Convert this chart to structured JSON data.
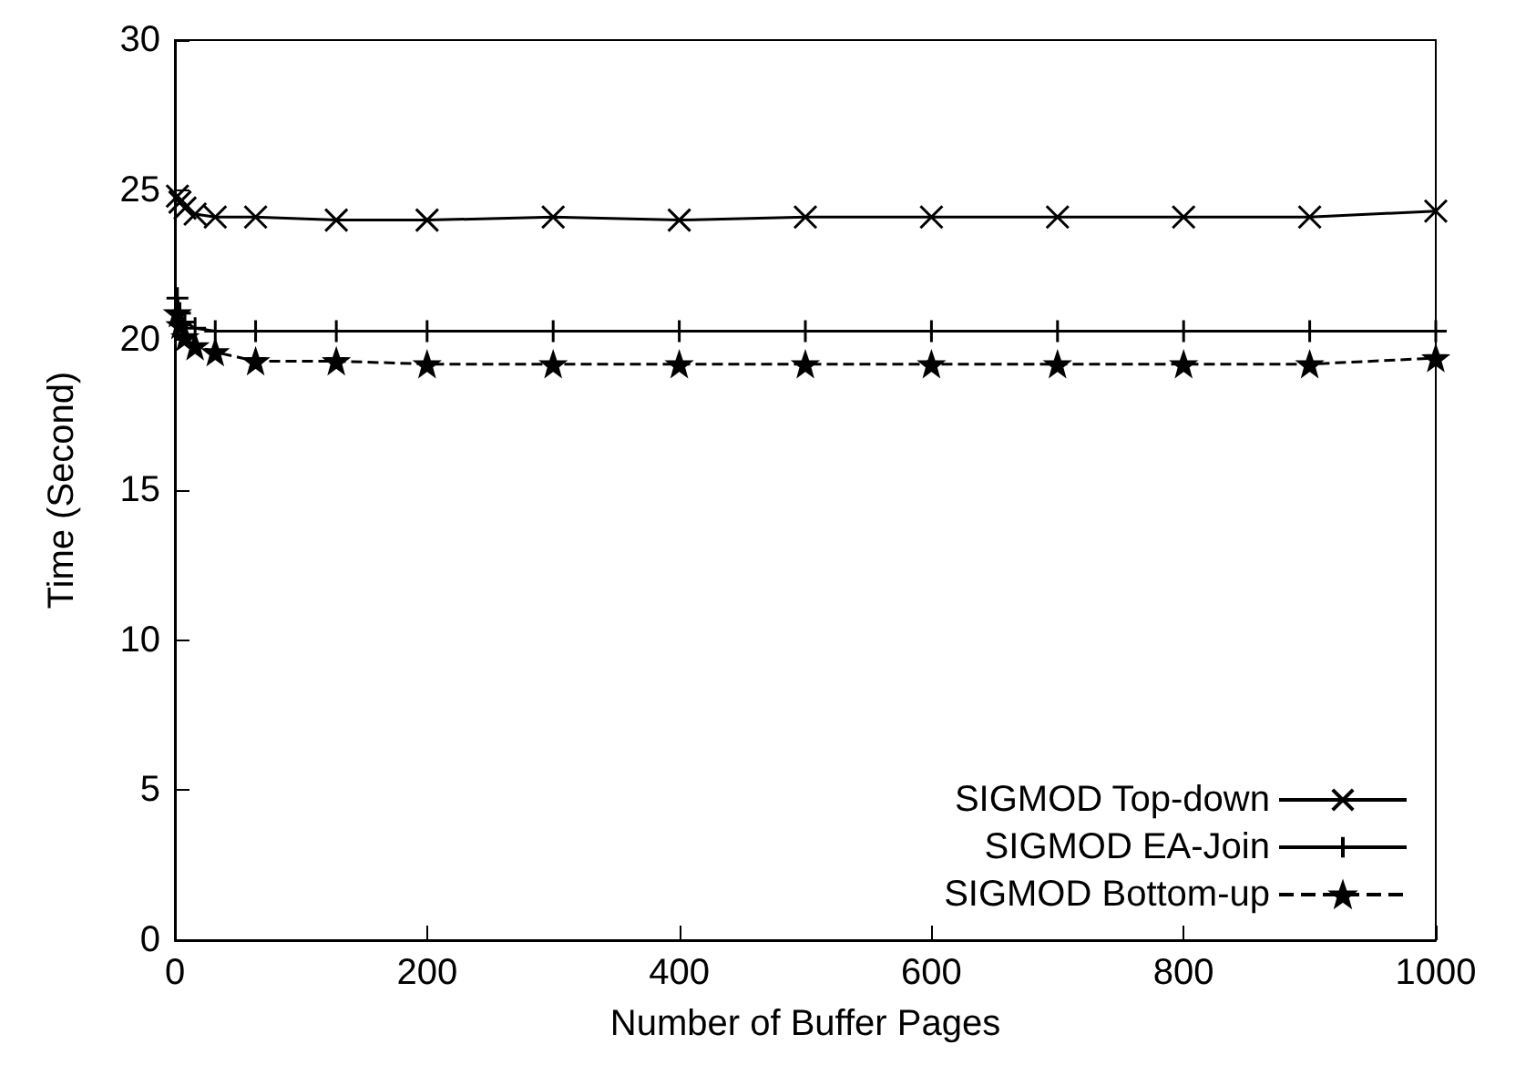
{
  "chart_data": {
    "type": "line",
    "xlabel": "Number of Buffer Pages",
    "ylabel": "Time (Second)",
    "x": [
      2,
      4,
      8,
      16,
      32,
      64,
      128,
      200,
      300,
      400,
      500,
      600,
      700,
      800,
      900,
      1000
    ],
    "xlim": [
      0,
      1000
    ],
    "xticks": [
      0,
      200,
      400,
      600,
      800,
      1000
    ],
    "ylim": [
      0,
      30
    ],
    "yticks": [
      0,
      5,
      10,
      15,
      20,
      25,
      30
    ],
    "grid": false,
    "legend": "bottom right",
    "series": [
      {
        "name": "SIGMOD Top-down",
        "color": "#000000",
        "marker": "cross",
        "line_style": "solid",
        "values": [
          24.8,
          24.6,
          24.4,
          24.2,
          24.1,
          24.1,
          24.0,
          24.0,
          24.1,
          24.0,
          24.1,
          24.1,
          24.1,
          24.1,
          24.1,
          24.3
        ]
      },
      {
        "name": "SIGMOD EA-Join",
        "color": "#000000",
        "marker": "plus",
        "line_style": "solid",
        "values": [
          21.4,
          20.9,
          20.6,
          20.4,
          20.3,
          20.3,
          20.3,
          20.3,
          20.3,
          20.3,
          20.3,
          20.3,
          20.3,
          20.3,
          20.3,
          20.3
        ]
      },
      {
        "name": "SIGMOD Bottom-up",
        "color": "#000000",
        "marker": "star",
        "line_style": "dashed",
        "values": [
          20.9,
          20.5,
          20.1,
          19.8,
          19.6,
          19.3,
          19.3,
          19.2,
          19.2,
          19.2,
          19.2,
          19.2,
          19.2,
          19.2,
          19.2,
          19.4
        ]
      }
    ]
  }
}
